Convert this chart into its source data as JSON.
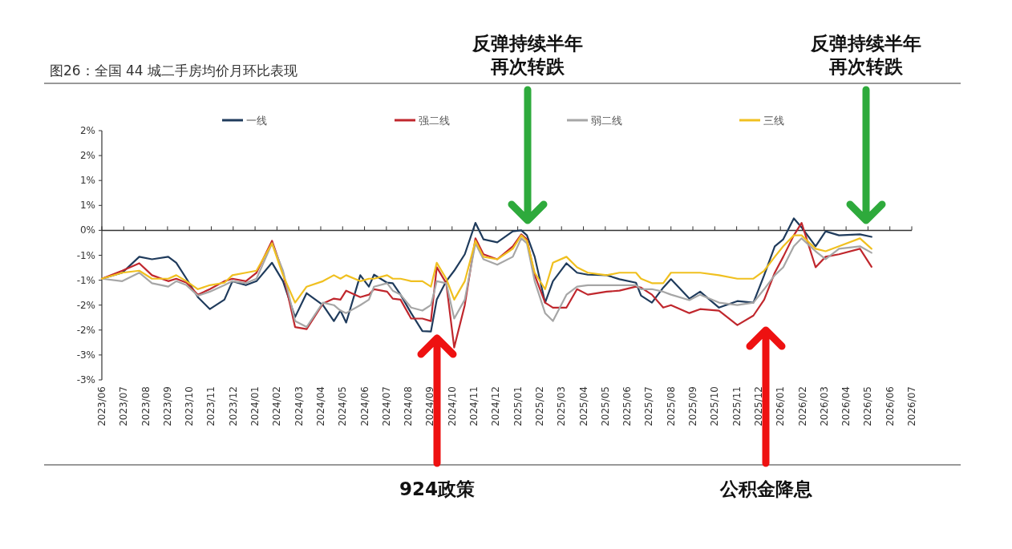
{
  "chart_data": {
    "type": "line",
    "title": "图26：全国 44 城二手房均价月环比表现",
    "x": [
      "2023-06-01",
      "2023-06-29",
      "2023-07-23",
      "2023-08-10",
      "2023-09-02",
      "2023-09-13",
      "2023-09-27",
      "2023-10-13",
      "2023-10-30",
      "2023-11-19",
      "2023-11-30",
      "2023-12-19",
      "2024-01-03",
      "2024-01-25",
      "2024-02-09",
      "2024-02-25",
      "2024-03-12",
      "2024-04-04",
      "2024-04-19",
      "2024-04-28",
      "2024-05-06",
      "2024-05-26",
      "2024-06-07",
      "2024-06-14",
      "2024-07-02",
      "2024-07-10",
      "2024-07-21",
      "2024-08-05",
      "2024-08-21",
      "2024-09-02",
      "2024-09-10",
      "2024-09-23",
      "2024-10-04",
      "2024-10-19",
      "2024-11-03",
      "2024-11-14",
      "2024-12-03",
      "2024-12-25",
      "2025-01-06",
      "2025-01-14",
      "2025-01-25",
      "2025-02-08",
      "2025-02-18",
      "2025-03-08",
      "2025-03-23",
      "2025-04-07",
      "2025-05-03",
      "2025-05-21",
      "2025-06-13",
      "2025-06-20",
      "2025-07-05",
      "2025-07-21",
      "2025-08-01",
      "2025-08-27",
      "2025-09-11",
      "2025-10-07",
      "2025-11-02",
      "2025-11-24",
      "2025-12-09",
      "2025-12-24",
      "2026-01-05",
      "2026-01-20",
      "2026-01-31",
      "2026-02-18",
      "2026-03-03",
      "2026-03-22",
      "2026-04-20",
      "2026-05-06"
    ],
    "series": [
      {
        "name": "一线",
        "color": "#1f3b5c",
        "values": [
          -0.97,
          -0.85,
          -0.53,
          -0.58,
          -0.53,
          -0.65,
          -0.97,
          -1.34,
          -1.58,
          -1.39,
          -1.02,
          -1.1,
          -1.02,
          -0.65,
          -1.02,
          -1.74,
          -1.26,
          -1.5,
          -1.82,
          -1.61,
          -1.85,
          -0.9,
          -1.13,
          -0.89,
          -1.05,
          -1.06,
          -1.29,
          -1.66,
          -2.02,
          -2.03,
          -1.39,
          -1.02,
          -0.81,
          -0.48,
          0.15,
          -0.18,
          -0.24,
          -0.02,
          0,
          -0.1,
          -0.53,
          -1.45,
          -1.02,
          -0.66,
          -0.85,
          -0.89,
          -0.9,
          -0.98,
          -1.05,
          -1.31,
          -1.45,
          -1.15,
          -0.98,
          -1.37,
          -1.23,
          -1.55,
          -1.42,
          -1.45,
          -0.9,
          -0.32,
          -0.18,
          0.24,
          0.06,
          -0.32,
          -0.02,
          -0.1,
          -0.08,
          -0.13
        ]
      },
      {
        "name": "强二线",
        "color": "#c0272d",
        "values": [
          -0.97,
          -0.81,
          -0.66,
          -0.9,
          -1.02,
          -0.97,
          -1.05,
          -1.29,
          -1.18,
          -1.02,
          -0.97,
          -1.02,
          -0.85,
          -0.21,
          -0.85,
          -1.94,
          -1.98,
          -1.47,
          -1.37,
          -1.39,
          -1.21,
          -1.34,
          -1.29,
          -1.18,
          -1.23,
          -1.37,
          -1.39,
          -1.77,
          -1.77,
          -1.82,
          -0.74,
          -1.06,
          -2.35,
          -1.5,
          -0.16,
          -0.48,
          -0.58,
          -0.32,
          -0.08,
          -0.18,
          -0.9,
          -1.45,
          -1.55,
          -1.55,
          -1.18,
          -1.29,
          -1.23,
          -1.21,
          -1.13,
          -1.15,
          -1.29,
          -1.55,
          -1.5,
          -1.66,
          -1.58,
          -1.61,
          -1.9,
          -1.71,
          -1.39,
          -0.85,
          -0.53,
          -0.1,
          0.15,
          -0.74,
          -0.53,
          -0.48,
          -0.37,
          -0.73
        ]
      },
      {
        "name": "弱二线",
        "color": "#a6a6a6",
        "values": [
          -0.97,
          -1.02,
          -0.85,
          -1.06,
          -1.13,
          -1.02,
          -1.1,
          -1.31,
          -1.23,
          -1.1,
          -1.02,
          -1.06,
          -0.97,
          -0.26,
          -0.81,
          -1.82,
          -1.94,
          -1.45,
          -1.5,
          -1.61,
          -1.66,
          -1.5,
          -1.39,
          -1.13,
          -1.06,
          -1.21,
          -1.29,
          -1.55,
          -1.61,
          -1.5,
          -1.02,
          -1.06,
          -1.77,
          -1.39,
          -0.26,
          -0.58,
          -0.69,
          -0.53,
          -0.16,
          -0.26,
          -1.02,
          -1.66,
          -1.82,
          -1.29,
          -1.13,
          -1.1,
          -1.1,
          -1.1,
          -1.1,
          -1.18,
          -1.18,
          -1.23,
          -1.29,
          -1.4,
          -1.29,
          -1.45,
          -1.5,
          -1.45,
          -1.18,
          -0.9,
          -0.74,
          -0.32,
          -0.16,
          -0.42,
          -0.58,
          -0.37,
          -0.32,
          -0.45
        ]
      },
      {
        "name": "三线",
        "color": "#f0c020",
        "values": [
          -0.97,
          -0.85,
          -0.81,
          -0.97,
          -0.97,
          -0.9,
          -1.02,
          -1.18,
          -1.1,
          -1.05,
          -0.9,
          -0.85,
          -0.81,
          -0.26,
          -0.9,
          -1.45,
          -1.13,
          -1.02,
          -0.9,
          -0.97,
          -0.9,
          -1.02,
          -0.97,
          -0.97,
          -0.9,
          -0.97,
          -0.97,
          -1.02,
          -1.02,
          -1.13,
          -0.65,
          -0.97,
          -1.39,
          -1.02,
          -0.21,
          -0.53,
          -0.58,
          -0.37,
          -0.1,
          -0.21,
          -0.85,
          -1.18,
          -0.65,
          -0.53,
          -0.74,
          -0.85,
          -0.9,
          -0.85,
          -0.85,
          -0.97,
          -1.06,
          -1.06,
          -0.85,
          -0.85,
          -0.85,
          -0.9,
          -0.97,
          -0.97,
          -0.81,
          -0.53,
          -0.32,
          -0.1,
          -0.1,
          -0.37,
          -0.42,
          -0.32,
          -0.16,
          -0.37
        ]
      }
    ],
    "xlim": [
      "2023-06",
      "2026-07"
    ],
    "xticks": [
      {
        "value": "2023-06",
        "label": "2023/06"
      },
      {
        "value": "2023-07",
        "label": "2023/07"
      },
      {
        "value": "2023-08",
        "label": "2023/08"
      },
      {
        "value": "2023-09",
        "label": "2023/09"
      },
      {
        "value": "2023-10",
        "label": "2023/10"
      },
      {
        "value": "2023-11",
        "label": "2023/11"
      },
      {
        "value": "2023-12",
        "label": "2023/12"
      },
      {
        "value": "2024-01",
        "label": "2024/01"
      },
      {
        "value": "2024-02",
        "label": "2024/02"
      },
      {
        "value": "2024-03",
        "label": "2024/03"
      },
      {
        "value": "2024-04",
        "label": "2024/04"
      },
      {
        "value": "2024-05",
        "label": "2024/05"
      },
      {
        "value": "2024-06",
        "label": "2024/06"
      },
      {
        "value": "2024-07",
        "label": "2024/07"
      },
      {
        "value": "2024-08",
        "label": "2024/08"
      },
      {
        "value": "2024-09",
        "label": "2024/09"
      },
      {
        "value": "2024-10",
        "label": "2024/10"
      },
      {
        "value": "2024-11",
        "label": "2024/11"
      },
      {
        "value": "2024-12",
        "label": "2024/12"
      },
      {
        "value": "2025-01",
        "label": "2025/01"
      },
      {
        "value": "2025-02",
        "label": "2025/02"
      },
      {
        "value": "2025-03",
        "label": "2025/03"
      },
      {
        "value": "2025-04",
        "label": "2025/04"
      },
      {
        "value": "2025-05",
        "label": "2025/05"
      },
      {
        "value": "2025-06",
        "label": "2025/06"
      },
      {
        "value": "2025-07",
        "label": "2025/07"
      },
      {
        "value": "2025-08",
        "label": "2025/08"
      },
      {
        "value": "2025-09",
        "label": "2025/09"
      },
      {
        "value": "2025-10",
        "label": "2025/10"
      },
      {
        "value": "2025-11",
        "label": "2025/11"
      },
      {
        "value": "2025-12",
        "label": "2025/12"
      },
      {
        "value": "2026-01",
        "label": "2026/01"
      },
      {
        "value": "2026-02",
        "label": "2026/02"
      },
      {
        "value": "2026-03",
        "label": "2026/03"
      },
      {
        "value": "2026-04",
        "label": "2026/04"
      },
      {
        "value": "2026-05",
        "label": "2026/05"
      },
      {
        "value": "2026-06",
        "label": "2026/06"
      },
      {
        "value": "2026-07",
        "label": "2026/07"
      }
    ],
    "ylim": [
      -3,
      2
    ],
    "yticks": [
      {
        "value": 2,
        "label": "2%"
      },
      {
        "value": 1.5,
        "label": "2%"
      },
      {
        "value": 1,
        "label": "1%"
      },
      {
        "value": 0.5,
        "label": "1%"
      },
      {
        "value": 0,
        "label": "0%"
      },
      {
        "value": -0.5,
        "label": "-1%"
      },
      {
        "value": -1,
        "label": "-1%"
      },
      {
        "value": -1.5,
        "label": "-2%"
      },
      {
        "value": -2,
        "label": "-2%"
      },
      {
        "value": -2.5,
        "label": "-3%"
      },
      {
        "value": -3,
        "label": "-3%"
      }
    ],
    "legend": "top",
    "line_style": "solid",
    "annotations": [
      "反弹持续半年再次转跌",
      "反弹持续半年再次转跌",
      "924政策",
      "公积金降息"
    ]
  }
}
